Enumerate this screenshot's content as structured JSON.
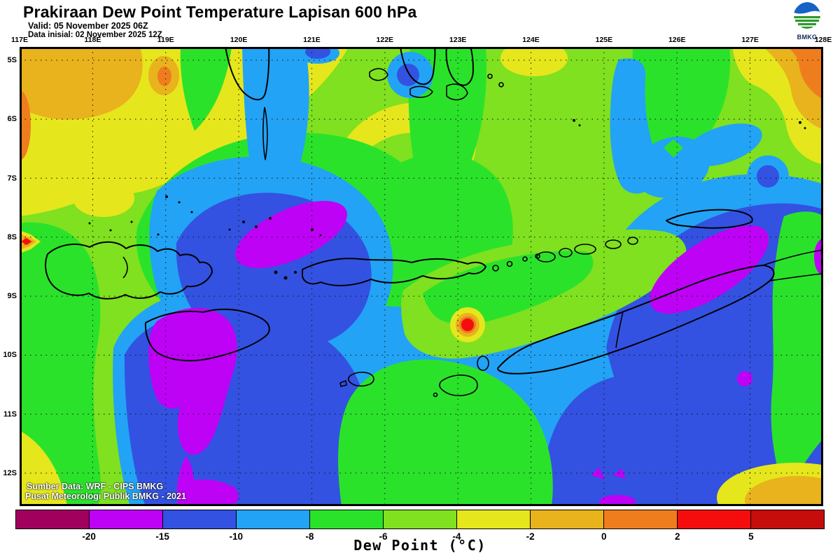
{
  "header": {
    "title": "Prakiraan Dew Point Temperature Lapisan 600 hPa",
    "valid_line": "Valid: 05 November 2025 06Z",
    "init_line": "Data inisial: 02 November 2025 12Z"
  },
  "logo": {
    "label": "BMKG"
  },
  "map": {
    "lon_labels": [
      "117E",
      "118E",
      "119E",
      "120E",
      "121E",
      "122E",
      "123E",
      "124E",
      "125E",
      "126E",
      "127E",
      "128E"
    ],
    "lat_labels": [
      "5S",
      "6S",
      "7S",
      "8S",
      "9S",
      "10S",
      "11S",
      "12S"
    ]
  },
  "credits": {
    "line1": "Sumber Data: WRF - CIPS BMKG",
    "line2": "Pusat Meteorologi Publik BMKG - 2021"
  },
  "palette": {
    "maroon": "#A1015D",
    "magenta": "#BE02F5",
    "royal": "#3352E1",
    "dodger": "#22A3F5",
    "green": "#2BE22B",
    "chartreuse": "#7FE11F",
    "yellow": "#E6E61C",
    "gold": "#E8B31C",
    "orange": "#EF7D1E",
    "red": "#F50D0D",
    "darkred": "#C70C0C"
  },
  "colorbar": {
    "caption": "Dew Point (°C)",
    "tick_labels": [
      "-20",
      "-15",
      "-10",
      "-8",
      "-6",
      "-4",
      "-2",
      "0",
      "2",
      "5"
    ],
    "segment_colors": [
      "#A1015D",
      "#BE02F5",
      "#3352E1",
      "#22A3F5",
      "#2BE22B",
      "#7FE11F",
      "#E6E61C",
      "#E8B31C",
      "#EF7D1E",
      "#F50D0D",
      "#C70C0C"
    ],
    "segments": [
      {
        "color": "#A1015D",
        "range": "< -20"
      },
      {
        "color": "#BE02F5",
        "range": "-20 to -15"
      },
      {
        "color": "#3352E1",
        "range": "-15 to -10"
      },
      {
        "color": "#22A3F5",
        "range": "-10 to -8"
      },
      {
        "color": "#2BE22B",
        "range": "-8 to -6"
      },
      {
        "color": "#7FE11F",
        "range": "-6 to -4"
      },
      {
        "color": "#E6E61C",
        "range": "-4 to -2"
      },
      {
        "color": "#E8B31C",
        "range": "-2 to 0"
      },
      {
        "color": "#EF7D1E",
        "range": "0 to 2"
      },
      {
        "color": "#F50D0D",
        "range": "2 to 5"
      },
      {
        "color": "#C70C0C",
        "range": "> 5"
      }
    ]
  }
}
